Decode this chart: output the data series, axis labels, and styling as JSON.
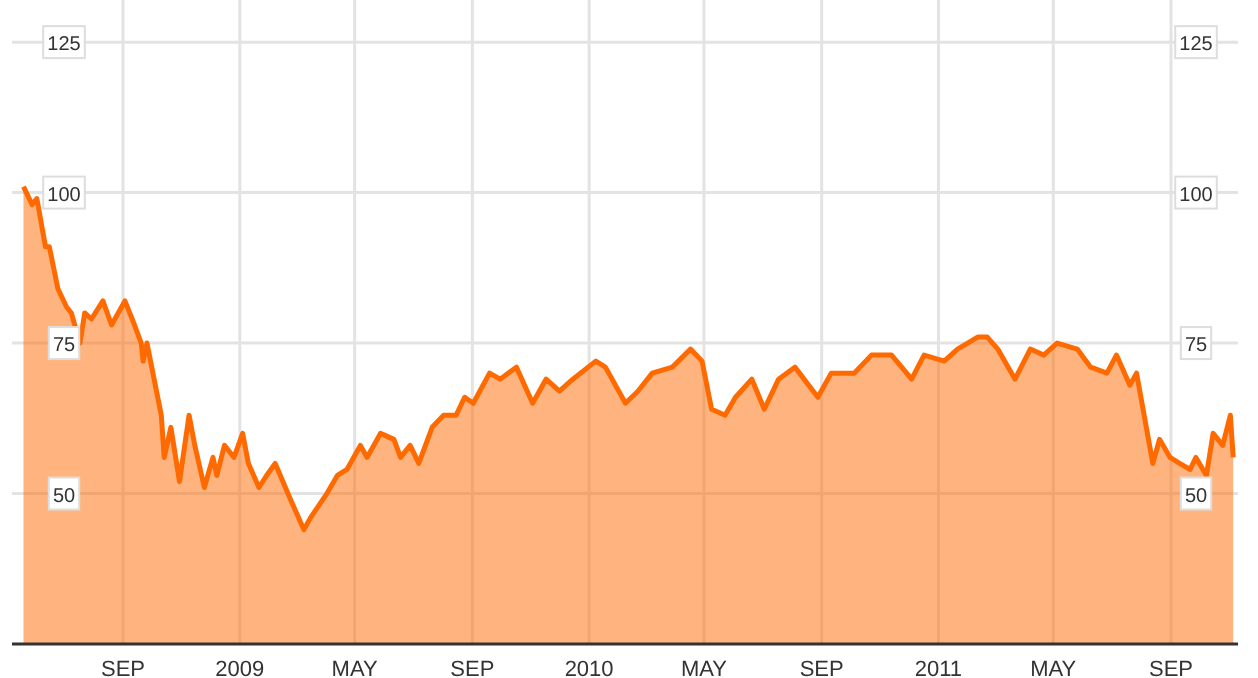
{
  "chart_data": {
    "type": "area",
    "x": [
      "2008-05-20",
      "2008-05-29",
      "2008-06-03",
      "2008-06-12",
      "2008-06-16",
      "2008-06-25",
      "2008-07-04",
      "2008-07-09",
      "2008-07-18",
      "2008-07-23",
      "2008-07-30",
      "2008-08-11",
      "2008-08-20",
      "2008-09-03",
      "2008-09-13",
      "2008-09-20",
      "2008-09-22",
      "2008-09-26",
      "2008-10-01",
      "2008-10-11",
      "2008-10-14",
      "2008-10-21",
      "2008-10-30",
      "2008-11-09",
      "2008-11-15",
      "2008-11-25",
      "2008-12-04",
      "2008-12-08",
      "2008-12-16",
      "2008-12-26",
      "2009-01-04",
      "2009-01-10",
      "2009-01-21",
      "2009-01-29",
      "2009-02-07",
      "2009-02-23",
      "2009-03-09",
      "2009-03-16",
      "2009-04-02",
      "2009-04-13",
      "2009-04-23",
      "2009-05-07",
      "2009-05-14",
      "2009-05-28",
      "2009-06-11",
      "2009-06-18",
      "2009-06-28",
      "2009-07-07",
      "2009-07-21",
      "2009-08-02",
      "2009-08-15",
      "2009-08-24",
      "2009-09-02",
      "2009-09-19",
      "2009-09-30",
      "2009-10-17",
      "2009-11-03",
      "2009-11-17",
      "2009-12-01",
      "2009-12-15",
      "2010-01-08",
      "2010-01-18",
      "2010-02-08",
      "2010-02-21",
      "2010-03-08",
      "2010-03-29",
      "2010-04-17",
      "2010-04-29",
      "2010-05-09",
      "2010-05-23",
      "2010-06-03",
      "2010-06-20",
      "2010-07-03",
      "2010-07-18",
      "2010-08-04",
      "2010-08-28",
      "2010-09-11",
      "2010-10-05",
      "2010-10-23",
      "2010-11-13",
      "2010-12-04",
      "2010-12-17",
      "2011-01-07",
      "2011-01-21",
      "2011-02-11",
      "2011-02-21",
      "2011-03-04",
      "2011-03-22",
      "2011-04-07",
      "2011-04-21",
      "2011-05-05",
      "2011-05-26",
      "2011-06-09",
      "2011-06-26",
      "2011-07-06",
      "2011-07-20",
      "2011-07-27",
      "2011-08-13",
      "2011-08-20",
      "2011-08-31",
      "2011-09-10",
      "2011-09-21",
      "2011-09-27",
      "2011-10-08",
      "2011-10-15",
      "2011-10-25",
      "2011-11-02",
      "2011-11-05"
    ],
    "series": [
      {
        "color": "#ff6a00",
        "values": [
          101,
          98,
          99,
          91,
          91,
          84,
          81,
          80,
          75,
          80,
          79,
          82,
          78,
          82,
          78,
          75,
          72,
          75,
          71,
          63,
          56,
          61,
          52,
          63,
          58,
          51,
          56,
          53,
          58,
          56,
          60,
          55,
          51,
          53,
          55,
          49,
          44,
          46,
          50,
          53,
          54,
          58,
          56,
          60,
          59,
          56,
          58,
          55,
          61,
          63,
          63,
          66,
          65,
          70,
          69,
          71,
          65,
          69,
          67,
          69,
          72,
          71,
          65,
          67,
          70,
          71,
          74,
          72,
          64,
          63,
          66,
          69,
          64,
          69,
          71,
          66,
          70,
          70,
          73,
          73,
          69,
          73,
          72,
          74,
          76,
          76,
          74,
          69,
          74,
          73,
          75,
          74,
          71,
          70,
          73,
          68,
          70,
          55,
          59,
          56,
          55,
          54,
          56,
          53,
          60,
          58,
          63,
          56
        ]
      }
    ],
    "xlim": [
      "2008-05-08",
      "2011-11-10"
    ],
    "xticks": [
      {
        "value": "2008-09-01",
        "label": "SEP"
      },
      {
        "value": "2009-01-01",
        "label": "2009"
      },
      {
        "value": "2009-05-01",
        "label": "MAY"
      },
      {
        "value": "2009-09-01",
        "label": "SEP"
      },
      {
        "value": "2010-01-01",
        "label": "2010"
      },
      {
        "value": "2010-05-01",
        "label": "MAY"
      },
      {
        "value": "2010-09-01",
        "label": "SEP"
      },
      {
        "value": "2011-01-01",
        "label": "2011"
      },
      {
        "value": "2011-05-01",
        "label": "MAY"
      },
      {
        "value": "2011-09-01",
        "label": "SEP"
      }
    ],
    "ylim": [
      25,
      132
    ],
    "yticks": [
      50,
      75,
      100,
      125
    ],
    "y2lim": [
      25,
      132
    ],
    "y2ticks": [
      50,
      75,
      100,
      125
    ],
    "grid": true
  }
}
